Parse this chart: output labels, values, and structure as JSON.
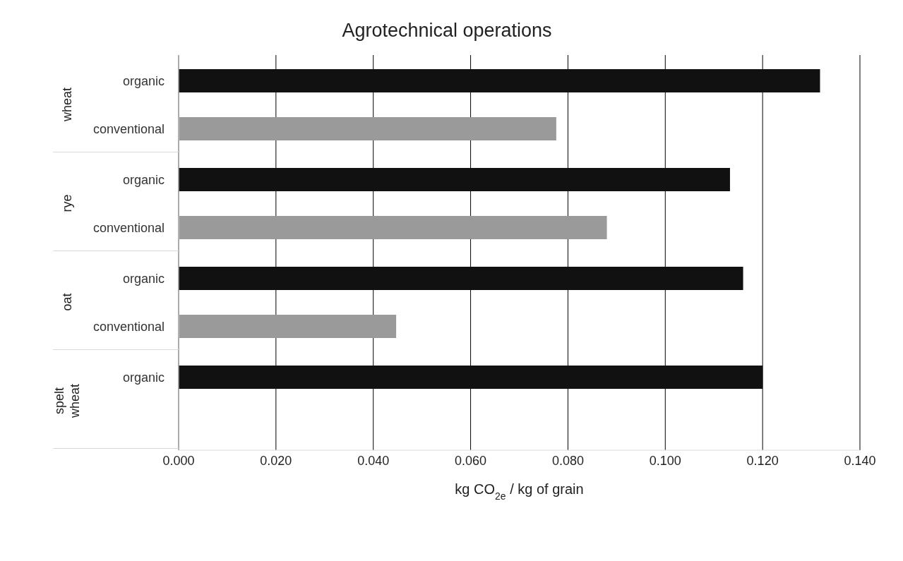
{
  "chart_data": {
    "type": "bar",
    "orientation": "horizontal",
    "title": "Agrotechnical operations",
    "xlabel": "kg CO$_{2e}$ / kg of grain",
    "categories": [
      "wheat",
      "rye",
      "oat",
      "spelt wheat"
    ],
    "series": [
      {
        "name": "organic",
        "color": "#111111",
        "values": [
          0.1318,
          0.1133,
          0.116,
          0.12
        ]
      },
      {
        "name": "conventional",
        "color": "#9a9a9a",
        "values": [
          0.0776,
          0.088,
          0.0447,
          null
        ]
      }
    ],
    "xlim": [
      0,
      0.14
    ],
    "xticks": [
      {
        "value": 0,
        "label": "0.000"
      },
      {
        "value": 0.02,
        "label": "0.020"
      },
      {
        "value": 0.04,
        "label": "0.040"
      },
      {
        "value": 0.06,
        "label": "0.060"
      },
      {
        "value": 0.08,
        "label": "0.080"
      },
      {
        "value": 0.1,
        "label": "0.100"
      },
      {
        "value": 0.12,
        "label": "0.120"
      },
      {
        "value": 0.14,
        "label": "0.140"
      }
    ],
    "grid": "x"
  }
}
